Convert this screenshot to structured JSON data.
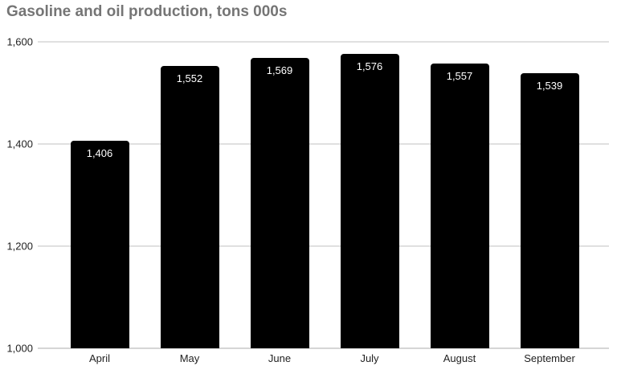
{
  "chart_data": {
    "type": "bar",
    "title": "Gasoline and oil production, tons 000s",
    "categories": [
      "April",
      "May",
      "June",
      "July",
      "August",
      "September"
    ],
    "values": [
      1406,
      1552,
      1569,
      1576,
      1557,
      1539
    ],
    "value_labels": [
      "1,406",
      "1,552",
      "1,569",
      "1,576",
      "1,557",
      "1,539"
    ],
    "xlabel": "",
    "ylabel": "",
    "ylim": [
      1000,
      1600
    ],
    "yticks": [
      1000,
      1200,
      1400,
      1600
    ],
    "ytick_labels": [
      "1,000",
      "1,200",
      "1,400",
      "1,600"
    ],
    "grid": true,
    "legend": "none",
    "colors": {
      "bar": "#000000",
      "bar_value_label": "#ffffff",
      "title": "#757575",
      "axis_text": "#222222",
      "gridline": "#e0e0e0",
      "background": "#ffffff"
    }
  }
}
